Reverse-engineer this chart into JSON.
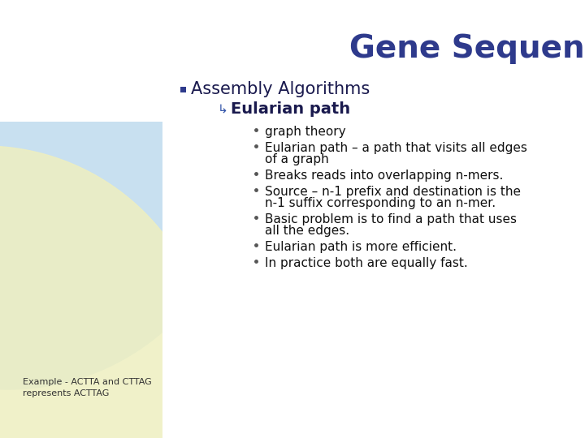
{
  "title": "Gene Sequencing",
  "title_color": "#2E3A8C",
  "title_fontsize": 28,
  "bg_color": "#FFFFFF",
  "bullet1": "Assembly Algorithms",
  "bullet1_color": "#1a1a4e",
  "bullet1_fontsize": 15,
  "sub_bullet": "Eularian path",
  "sub_bullet_color": "#1a1a4e",
  "sub_bullet_fontsize": 14,
  "bullet_square_color": "#2E3A8C",
  "items": [
    "graph theory",
    "Eularian path – a path that visits all edges",
    "of a graph",
    "Breaks reads into overlapping n-mers.",
    "Source – n-1 prefix and destination is the",
    "n-1 suffix corresponding to an n-mer.",
    "Basic problem is to find a path that uses",
    "all the edges.",
    "Eularian path is more efficient.",
    "In practice both are equally fast."
  ],
  "items_color": "#111111",
  "items_fontsize": 11,
  "example_text": "Example - ACTTA and CTTAG\nrepresents ACTTAG",
  "example_color": "#333333",
  "example_fontsize": 8,
  "blue_circle_color": "#C8E0F0",
  "yellow_circle_color": "#EEEFC0"
}
